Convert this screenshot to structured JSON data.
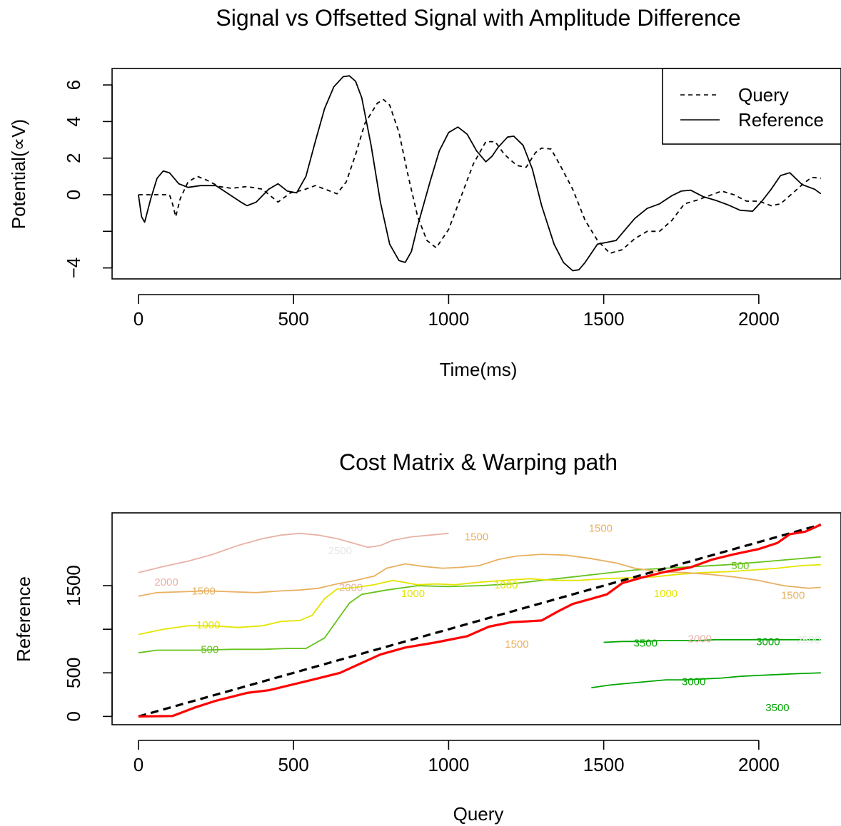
{
  "chart_data": [
    {
      "type": "line",
      "title": "Signal vs Offsetted Signal with Amplitude Difference",
      "xlabel": "Time(ms)",
      "ylabel": "Potential(∝V)",
      "xlim": [
        -85,
        2265
      ],
      "ylim": [
        -4.6,
        6.9
      ],
      "xticks": [
        0,
        500,
        1000,
        1500,
        2000
      ],
      "yticks": [
        6,
        4,
        2,
        0,
        -2,
        -4
      ],
      "ytick_labels": [
        "6",
        "4",
        "2",
        "0",
        "",
        "−4"
      ],
      "grid": false,
      "legend": {
        "position": "top-right"
      },
      "series": [
        {
          "name": "Query",
          "style": "dashed",
          "color": "#000000",
          "x": [
            0,
            40,
            70,
            100,
            110,
            120,
            135,
            160,
            190,
            220,
            260,
            300,
            350,
            400,
            450,
            490,
            530,
            570,
            610,
            640,
            670,
            700,
            730,
            770,
            790,
            810,
            840,
            870,
            900,
            930,
            960,
            1000,
            1040,
            1080,
            1120,
            1150,
            1180,
            1220,
            1250,
            1280,
            1300,
            1330,
            1360,
            1400,
            1440,
            1480,
            1520,
            1560,
            1600,
            1640,
            1680,
            1720,
            1760,
            1800,
            1840,
            1880,
            1920,
            1960,
            2000,
            2040,
            2070,
            2100,
            2140,
            2170,
            2200
          ],
          "y": [
            0,
            0,
            0,
            0,
            -0.5,
            -1.2,
            -0.2,
            0.7,
            1.0,
            0.8,
            0.45,
            0.35,
            0.45,
            0.3,
            -0.4,
            0.1,
            0.25,
            0.5,
            0.25,
            0.05,
            0.7,
            2.2,
            3.9,
            5.0,
            5.2,
            4.9,
            3.4,
            1.0,
            -1.2,
            -2.5,
            -2.9,
            -1.9,
            -0.1,
            1.7,
            2.9,
            2.9,
            2.2,
            1.6,
            1.5,
            2.3,
            2.55,
            2.5,
            1.6,
            0.3,
            -1.4,
            -2.5,
            -3.2,
            -3.0,
            -2.4,
            -2.0,
            -2.0,
            -1.4,
            -0.5,
            -0.3,
            -0.05,
            0.2,
            0.0,
            -0.35,
            -0.35,
            -0.6,
            -0.5,
            -0.05,
            0.55,
            0.95,
            0.9
          ]
        },
        {
          "name": "Reference",
          "style": "solid",
          "color": "#000000",
          "x": [
            0,
            10,
            20,
            40,
            60,
            80,
            100,
            130,
            160,
            200,
            250,
            290,
            330,
            350,
            380,
            420,
            450,
            480,
            510,
            540,
            570,
            600,
            630,
            660,
            680,
            700,
            720,
            750,
            780,
            810,
            840,
            860,
            880,
            900,
            940,
            970,
            1000,
            1030,
            1060,
            1090,
            1120,
            1140,
            1160,
            1190,
            1210,
            1240,
            1270,
            1300,
            1340,
            1370,
            1400,
            1420,
            1440,
            1480,
            1510,
            1540,
            1570,
            1600,
            1640,
            1680,
            1720,
            1750,
            1780,
            1820,
            1860,
            1900,
            1940,
            1980,
            2010,
            2040,
            2070,
            2100,
            2140,
            2180,
            2200
          ],
          "y": [
            0,
            -1.2,
            -1.5,
            -0.2,
            0.9,
            1.3,
            1.2,
            0.6,
            0.4,
            0.5,
            0.5,
            0.05,
            -0.4,
            -0.6,
            -0.4,
            0.3,
            0.6,
            0.2,
            0.1,
            1.0,
            2.9,
            4.7,
            5.9,
            6.45,
            6.5,
            6.2,
            5.3,
            2.7,
            -0.4,
            -2.7,
            -3.6,
            -3.7,
            -3.1,
            -1.7,
            0.7,
            2.4,
            3.4,
            3.7,
            3.3,
            2.4,
            1.8,
            2.1,
            2.6,
            3.15,
            3.2,
            2.7,
            1.4,
            -0.6,
            -2.7,
            -3.7,
            -4.15,
            -4.1,
            -3.7,
            -2.7,
            -2.6,
            -2.5,
            -1.9,
            -1.3,
            -0.75,
            -0.5,
            -0.05,
            0.2,
            0.25,
            -0.1,
            -0.3,
            -0.55,
            -0.85,
            -0.9,
            -0.35,
            0.3,
            1.05,
            1.2,
            0.55,
            0.3,
            0.05
          ]
        }
      ]
    },
    {
      "type": "contour",
      "title": "Cost Matrix & Warping path",
      "xlabel": "Query",
      "ylabel": "Reference",
      "xlim": [
        -85,
        2265
      ],
      "ylim": [
        -95,
        2335
      ],
      "xticks": [
        0,
        500,
        1000,
        1500,
        2000
      ],
      "yticks": [
        0,
        500,
        1000,
        1500
      ],
      "ytick_labels": [
        "0",
        "500",
        "",
        "1500"
      ],
      "grid": false,
      "contour_levels": [
        {
          "level": 500,
          "color": "#66c21a"
        },
        {
          "level": 1000,
          "color": "#e4e400"
        },
        {
          "level": 1500,
          "color": "#e8b060"
        },
        {
          "level": 2000,
          "color": "#e8b2a6"
        },
        {
          "level": 2500,
          "color": "#e6e6e6"
        },
        {
          "level": 3000,
          "color": "#00a600"
        },
        {
          "level": 3500,
          "color": "#00a600"
        }
      ],
      "contours": [
        {
          "level": 500,
          "x": [
            0,
            60,
            120,
            200,
            300,
            400,
            480,
            540,
            600,
            680,
            720,
            800,
            900,
            1000,
            1100,
            1200,
            1300,
            1400,
            1500,
            1600,
            1700,
            1800,
            1900,
            2000,
            2100,
            2200
          ],
          "y": [
            730,
            760,
            760,
            760,
            770,
            770,
            780,
            780,
            900,
            1300,
            1400,
            1450,
            1500,
            1490,
            1500,
            1520,
            1560,
            1600,
            1640,
            1680,
            1700,
            1720,
            1740,
            1770,
            1800,
            1830
          ]
        },
        {
          "level": 1000,
          "x": [
            0,
            80,
            160,
            240,
            320,
            400,
            460,
            520,
            560,
            600,
            640,
            700,
            760,
            820,
            900,
            960,
            1020,
            1100,
            1180,
            1260,
            1340,
            1420,
            1500,
            1580,
            1660,
            1740,
            1820,
            1900,
            1980,
            2060,
            2140,
            2200
          ],
          "y": [
            940,
            1000,
            1040,
            1040,
            1020,
            1040,
            1090,
            1100,
            1160,
            1350,
            1460,
            1480,
            1510,
            1560,
            1510,
            1520,
            1510,
            1540,
            1560,
            1580,
            1560,
            1560,
            1580,
            1590,
            1600,
            1630,
            1650,
            1660,
            1680,
            1700,
            1730,
            1740
          ]
        },
        {
          "level": 1500,
          "x": [
            0,
            60,
            140,
            220,
            300,
            380,
            460,
            520,
            580,
            640,
            700,
            760,
            800,
            860,
            920,
            980,
            1040,
            1100,
            1160,
            1220,
            1300,
            1380,
            1460,
            1540,
            1600,
            1680,
            1760,
            1840,
            1920,
            2000,
            2080,
            2160,
            2200
          ],
          "y": [
            1380,
            1420,
            1430,
            1440,
            1430,
            1420,
            1440,
            1450,
            1470,
            1520,
            1560,
            1610,
            1700,
            1750,
            1720,
            1700,
            1710,
            1730,
            1800,
            1840,
            1860,
            1850,
            1810,
            1760,
            1700,
            1660,
            1650,
            1630,
            1600,
            1560,
            1500,
            1470,
            1480
          ]
        },
        {
          "level": 2000,
          "x": [
            0,
            80,
            160,
            240,
            320,
            400,
            460,
            520,
            580,
            640,
            700,
            740,
            780,
            820,
            880,
            940,
            1000
          ],
          "y": [
            1650,
            1720,
            1780,
            1860,
            1960,
            2040,
            2080,
            2100,
            2080,
            2040,
            1980,
            1940,
            1960,
            2020,
            2060,
            2080,
            2100
          ]
        },
        {
          "level": 3000,
          "x": [
            1460,
            1520,
            1580,
            1640,
            1700,
            1760,
            1820,
            1880,
            1940,
            2000,
            2060,
            2120,
            2200
          ],
          "y": [
            330,
            360,
            380,
            400,
            420,
            420,
            430,
            440,
            460,
            470,
            480,
            490,
            500
          ]
        },
        {
          "level": 3500,
          "x": [
            1500,
            1560,
            1620,
            1680,
            1740,
            1800,
            1860,
            1920,
            1980,
            2040,
            2100,
            2160,
            2200
          ],
          "y": [
            850,
            860,
            860,
            870,
            870,
            870,
            880,
            880,
            880,
            880,
            880,
            880,
            880
          ]
        }
      ],
      "contour_labels": [
        {
          "text": "500",
          "x": 230,
          "y": 770,
          "level": 500
        },
        {
          "text": "1000",
          "x": 225,
          "y": 1050,
          "level": 1000
        },
        {
          "text": "1500",
          "x": 210,
          "y": 1440,
          "level": 1500
        },
        {
          "text": "2000",
          "x": 90,
          "y": 1540,
          "level": 2000
        },
        {
          "text": "2000",
          "x": 685,
          "y": 1480,
          "level": 2000
        },
        {
          "text": "2500",
          "x": 650,
          "y": 1900,
          "level": 2500
        },
        {
          "text": "1000",
          "x": 885,
          "y": 1410,
          "level": 1000
        },
        {
          "text": "1000",
          "x": 1185,
          "y": 1510,
          "level": 1000
        },
        {
          "text": "1500",
          "x": 1090,
          "y": 2060,
          "level": 1500
        },
        {
          "text": "1500",
          "x": 1490,
          "y": 2160,
          "level": 1500
        },
        {
          "text": "500",
          "x": 1940,
          "y": 1730,
          "level": 500
        },
        {
          "text": "1000",
          "x": 1700,
          "y": 1410,
          "level": 1000
        },
        {
          "text": "1500",
          "x": 2110,
          "y": 1390,
          "level": 1500
        },
        {
          "text": "1500",
          "x": 1220,
          "y": 830,
          "level": 1500
        },
        {
          "text": "2000",
          "x": 1810,
          "y": 890,
          "level": 2000
        },
        {
          "text": "2500",
          "x": 2160,
          "y": 880,
          "level": 2500
        },
        {
          "text": "3500",
          "x": 1635,
          "y": 840,
          "level": 3500
        },
        {
          "text": "3000",
          "x": 2030,
          "y": 860,
          "level": 3000
        },
        {
          "text": "3000",
          "x": 1790,
          "y": 400,
          "level": 3000
        },
        {
          "text": "3500",
          "x": 2060,
          "y": 100,
          "level": 3500
        }
      ],
      "series": [
        {
          "name": "",
          "style": "dashed",
          "color": "#000000",
          "x": [
            0,
            2200
          ],
          "y": [
            0,
            2200
          ]
        },
        {
          "name": "",
          "style": "solid",
          "color": "#ff0000",
          "x": [
            0,
            110,
            180,
            250,
            350,
            420,
            560,
            650,
            780,
            860,
            960,
            1060,
            1130,
            1200,
            1250,
            1300,
            1350,
            1400,
            1460,
            1510,
            1560,
            1620,
            1700,
            1780,
            1850,
            1920,
            2000,
            2060,
            2100,
            2150,
            2200
          ],
          "y": [
            0,
            5,
            100,
            180,
            270,
            300,
            420,
            500,
            710,
            790,
            850,
            920,
            1030,
            1080,
            1090,
            1100,
            1200,
            1290,
            1350,
            1400,
            1530,
            1590,
            1660,
            1710,
            1800,
            1860,
            1920,
            1990,
            2090,
            2120,
            2200
          ]
        }
      ]
    }
  ]
}
